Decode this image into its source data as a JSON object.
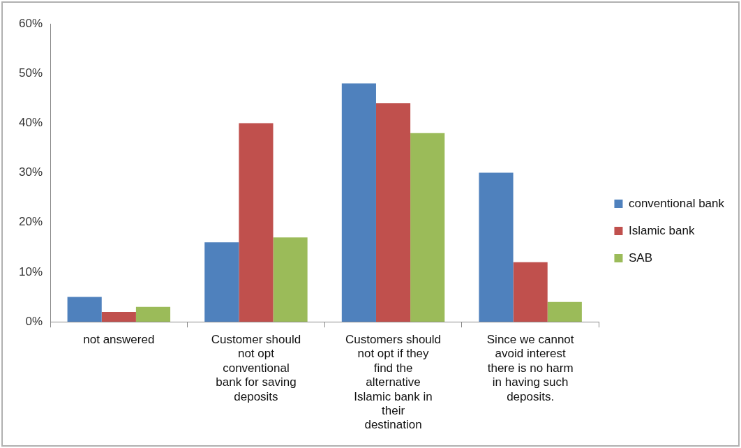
{
  "chart_data": {
    "type": "bar",
    "categories": [
      "not answered",
      "Customer should not opt conventional bank for saving deposits",
      "Customers should not opt if they find the alternative Islamic bank in their destination",
      "Since we cannot avoid interest there is no harm in having such deposits."
    ],
    "series": [
      {
        "name": "conventional bank",
        "color": "#4f81bd",
        "values": [
          5,
          16,
          48,
          30
        ]
      },
      {
        "name": "Islamic bank",
        "color": "#c0504d",
        "values": [
          2,
          40,
          44,
          12
        ]
      },
      {
        "name": "SAB",
        "color": "#9bbb59",
        "values": [
          3,
          17,
          38,
          4
        ]
      }
    ],
    "ylim": [
      0,
      60
    ],
    "yticks": [
      {
        "value": 0,
        "label": "0%"
      },
      {
        "value": 10,
        "label": "10%"
      },
      {
        "value": 20,
        "label": "20%"
      },
      {
        "value": 30,
        "label": "30%"
      },
      {
        "value": 40,
        "label": "40%"
      },
      {
        "value": 50,
        "label": "50%"
      },
      {
        "value": 60,
        "label": "60%"
      }
    ],
    "grid": false,
    "legend": "right"
  }
}
